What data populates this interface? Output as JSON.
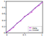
{
  "chart_data": {
    "type": "line",
    "x": [
      0,
      0.1,
      0.2,
      0.3,
      0.4,
      0.5,
      0.6,
      0.7,
      0.8,
      0.9,
      1
    ],
    "series": [
      {
        "name": "data",
        "color": "#cc33cc",
        "marker": "circle",
        "line_style": "solid",
        "values": [
          0.02,
          0.08,
          0.17,
          0.31,
          0.38,
          0.52,
          0.58,
          0.66,
          0.79,
          0.87,
          0.97
        ]
      },
      {
        "name": "model",
        "color": "#5a3c9c",
        "line_style": "solid",
        "values": [
          0,
          0.1,
          0.2,
          0.3,
          0.4,
          0.5,
          0.6,
          0.7,
          0.8,
          0.9,
          1
        ]
      }
    ],
    "xlim": [
      0,
      1
    ],
    "ylim": [
      0,
      1
    ],
    "xticks": [
      0,
      0.5,
      1
    ],
    "yticks": [
      0,
      0.2,
      0.4,
      0.6,
      0.8,
      1
    ],
    "grid": false,
    "legend": "lower right"
  }
}
